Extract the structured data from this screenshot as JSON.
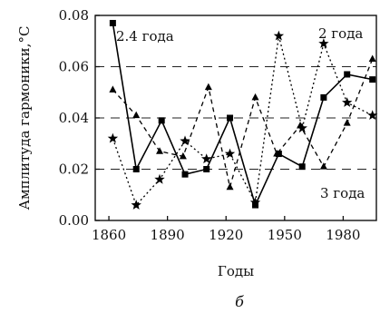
{
  "chart_data": {
    "type": "line",
    "xlabel": "Годы",
    "ylabel": "Амплитуда гармоники,°C",
    "caption": "б",
    "xlim": [
      1853,
      1997
    ],
    "ylim": [
      0.0,
      0.08
    ],
    "xticks": [
      1860,
      1890,
      1920,
      1950,
      1980
    ],
    "xtick_labels": [
      "1860",
      "1890",
      "1920",
      "1950",
      "1980"
    ],
    "yticks": [
      0.0,
      0.02,
      0.04,
      0.06,
      0.08
    ],
    "ytick_labels": [
      "0.00",
      "0.02",
      "0.04",
      "0.06",
      "0.08"
    ],
    "grid": "horizontal dashed",
    "series": [
      {
        "name": "2.4 года",
        "style": "solid",
        "marker": "square",
        "color": "#000000",
        "x": [
          1862,
          1874,
          1887,
          1899,
          1910,
          1922,
          1935,
          1947,
          1959,
          1970,
          1982,
          1995
        ],
        "y": [
          0.077,
          0.02,
          0.039,
          0.018,
          0.02,
          0.04,
          0.006,
          0.026,
          0.021,
          0.048,
          0.057,
          0.055
        ]
      },
      {
        "name": "2 года",
        "style": "dotted",
        "marker": "star",
        "color": "#000000",
        "x": [
          1862,
          1874,
          1886,
          1899,
          1910,
          1922,
          1935,
          1947,
          1959,
          1970,
          1982,
          1995
        ],
        "y": [
          0.032,
          0.006,
          0.016,
          0.031,
          0.024,
          0.026,
          0.007,
          0.072,
          0.036,
          0.069,
          0.046,
          0.041
        ]
      },
      {
        "name": "3 года",
        "style": "dashed",
        "marker": "triangle",
        "color": "#000000",
        "x": [
          1862,
          1874,
          1886,
          1898,
          1911,
          1922,
          1935,
          1946,
          1958,
          1970,
          1982,
          1995
        ],
        "y": [
          0.051,
          0.041,
          0.027,
          0.025,
          0.052,
          0.013,
          0.048,
          0.026,
          0.037,
          0.021,
          0.038,
          0.063
        ]
      }
    ],
    "annotations": [
      {
        "text": "2.4 года",
        "series_index": 0
      },
      {
        "text": "2 года",
        "series_index": 1
      },
      {
        "text": "3 года",
        "series_index": 2
      }
    ]
  }
}
